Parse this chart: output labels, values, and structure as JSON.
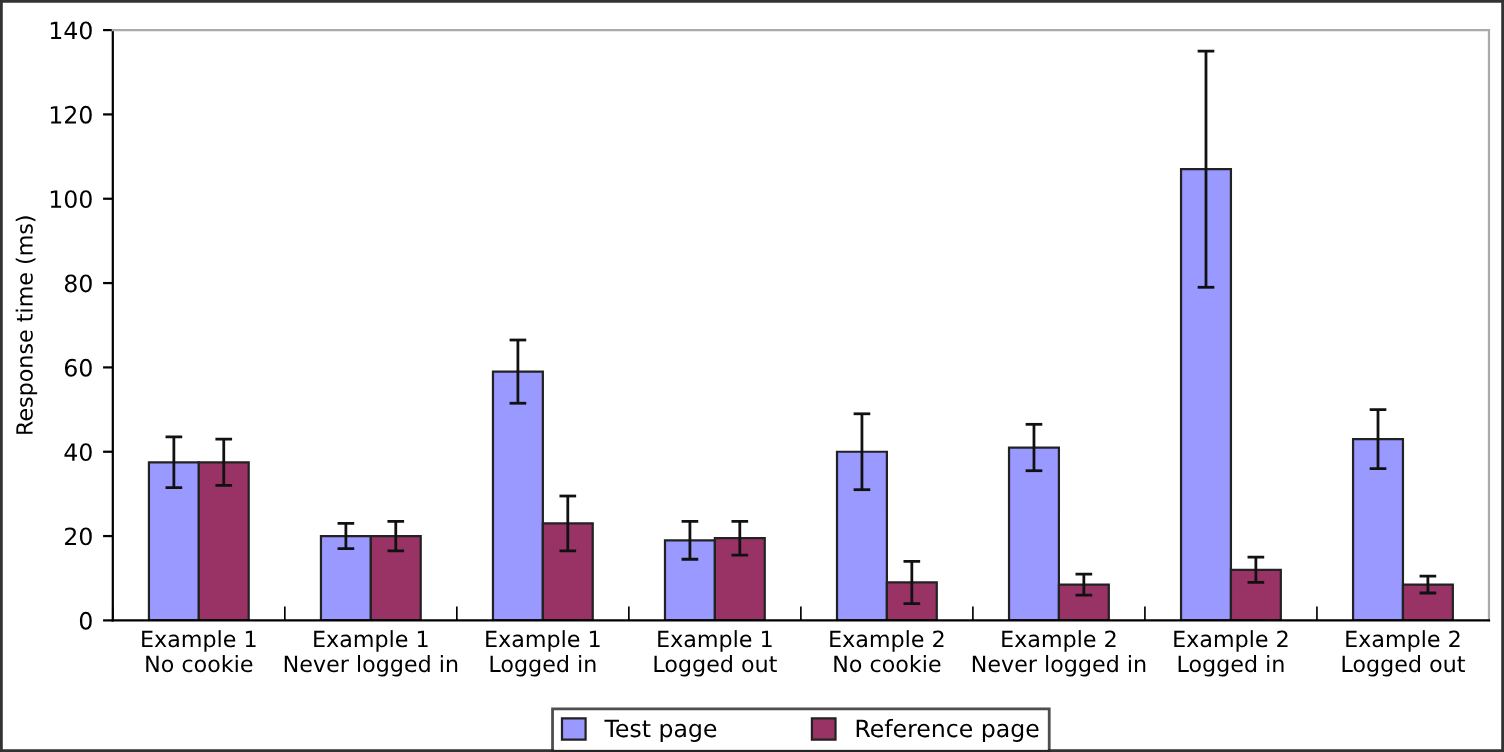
{
  "chart_data": {
    "type": "bar",
    "ylabel": "Response time (ms)",
    "categories": [
      "Example 1\nNo cookie",
      "Example 1\nNever logged in",
      "Example 1\nLogged in",
      "Example 1\nLogged out",
      "Example 2\nNo cookie",
      "Example 2\nNever logged in",
      "Example 2\nLogged in",
      "Example 2\nLogged out"
    ],
    "series": [
      {
        "name": "Test page",
        "color": "#9999ff",
        "values": [
          37.5,
          20,
          59,
          19,
          40,
          41,
          107,
          43
        ],
        "errors": [
          6,
          3,
          7.5,
          4.5,
          9,
          5.5,
          28,
          7
        ]
      },
      {
        "name": "Reference page",
        "color": "#993366",
        "values": [
          37.5,
          20,
          23,
          19.5,
          9,
          8.5,
          12,
          8.5
        ],
        "errors": [
          5.5,
          3.5,
          6.5,
          4,
          5,
          2.5,
          3,
          2
        ]
      }
    ],
    "ylim": [
      0,
      140
    ],
    "yticks": [
      0,
      20,
      40,
      60,
      80,
      100,
      120,
      140
    ],
    "grid": false,
    "legend": "bottom"
  }
}
